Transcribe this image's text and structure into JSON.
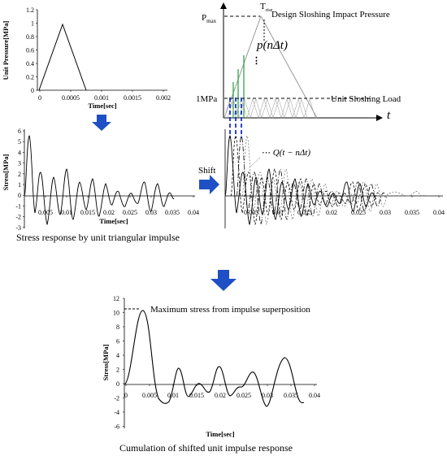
{
  "top_left": {
    "ylabel": "Unit Pressure[MPa]",
    "xlabel": "Time[sec]",
    "yticks": [
      "0",
      "0.2",
      "0.4",
      "0.6",
      "0.8",
      "1",
      "1.2"
    ],
    "xticks": [
      "0",
      "0.0005",
      "0.001",
      "0.0015",
      "0.002"
    ]
  },
  "top_right": {
    "pmax": "P",
    "pmax_sub": "max",
    "trise": "T",
    "trise_sub": "rise",
    "design_label": "Design Sloshing Impact Pressure",
    "p_label": "p(nΔt)",
    "onempa": "1MPa",
    "unit_load_label": "Unit Sloshing Load",
    "t_axis": "t"
  },
  "mid_left": {
    "ylabel": "Stress[MPa]",
    "xlabel": "Time[sec]",
    "yticks": [
      "6",
      "5",
      "4",
      "3",
      "2",
      "1",
      "0",
      "-1",
      "-2",
      "-3"
    ],
    "xticks": [
      "0.005",
      "0.01",
      "0.015",
      "0.02",
      "0.025",
      "0.03",
      "0.035",
      "0.04"
    ],
    "caption": "Stress response by unit triangular impulse"
  },
  "mid_right": {
    "shift_label": "Shift",
    "q_label": "Q(t − nΔt)",
    "xticks": [
      "0.005",
      "0.01",
      "0.015",
      "0.02",
      "0.025",
      "0.03",
      "0.035",
      "0.04"
    ]
  },
  "bottom": {
    "ylabel": "Stress[MPa]",
    "xlabel": "Time[sec]",
    "yticks": [
      "12",
      "10",
      "8",
      "6",
      "4",
      "2",
      "0",
      "-2",
      "-4",
      "-6"
    ],
    "xticks": [
      "0",
      "0.005",
      "0.01",
      "0.015",
      "0.02",
      "0.025",
      "0.03",
      "0.035",
      "0.04"
    ],
    "max_label": "Maximum stress from impulse superposition",
    "caption": "Cumulation of shifted unit impulse response"
  },
  "colors": {
    "arrow": "#1f4fc4",
    "green": "#2ea84a",
    "blue_dash": "#1a2fd0",
    "gray": "#9a9a9a"
  }
}
